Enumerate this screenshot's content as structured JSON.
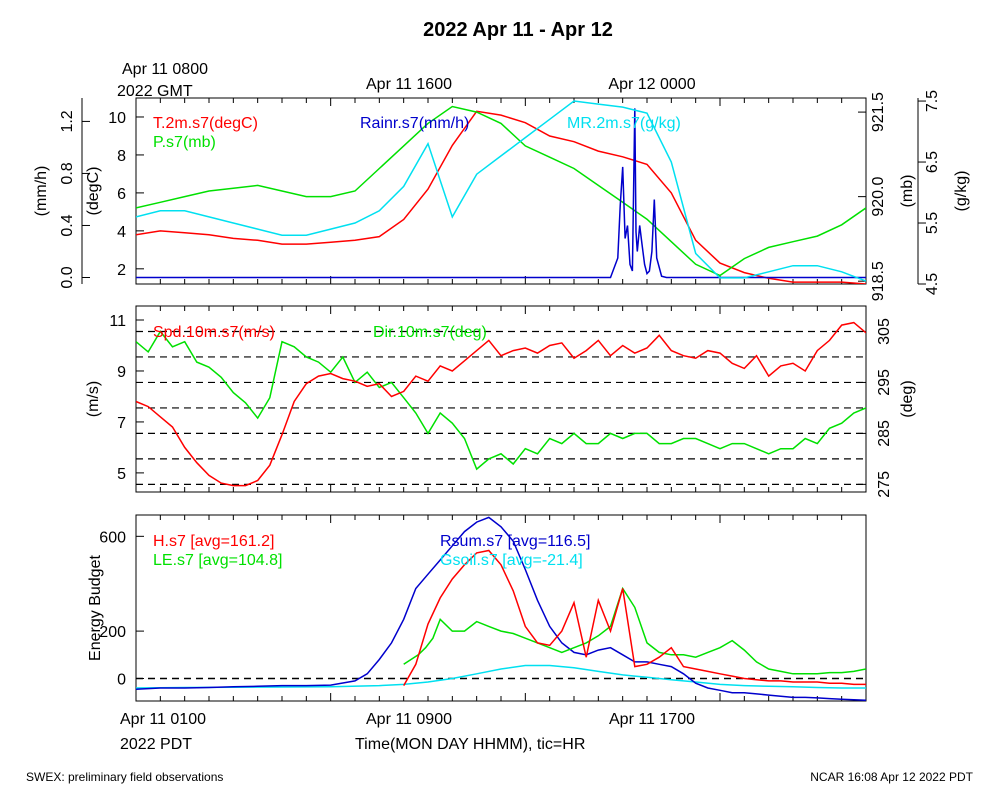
{
  "page": {
    "title": "2022 Apr 11 - Apr 12",
    "footer_left": "SWEX: preliminary field observations",
    "footer_right": "NCAR 16:08 Apr 12 2022 PDT",
    "top_time_labels": [
      "Apr 11 0800",
      "2022 GMT",
      "Apr 11 1600",
      "Apr 12 0000"
    ],
    "bottom_time_labels": [
      "Apr 11 0100",
      "2022 PDT",
      "Apr 11 0900",
      "Apr 11 1700"
    ],
    "xlabel": "Time(MON DAY HHMM), tic=HR"
  },
  "colors": {
    "red": "#ff0000",
    "green": "#00e000",
    "blue": "#0000cc",
    "cyan": "#00e0f0",
    "black": "#000000"
  },
  "chart_data": [
    {
      "type": "line",
      "panel": "top",
      "x_unit": "hours since Apr 11 0100 PDT",
      "xlim": [
        0,
        30
      ],
      "left_axes": [
        {
          "label": "(mm/h)",
          "ticks": [
            "0.0",
            "0.4",
            "0.8",
            "1.2"
          ],
          "tick_values": [
            0,
            0.4,
            0.8,
            1.2
          ],
          "ylim": [
            -0.05,
            1.38
          ]
        },
        {
          "label": "(degC)",
          "ticks": [
            "2",
            "4",
            "6",
            "8",
            "10"
          ],
          "tick_values": [
            2,
            4,
            6,
            8,
            10
          ],
          "ylim": [
            1.2,
            11.0
          ]
        }
      ],
      "right_axes": [
        {
          "label": "(mb)",
          "ticks": [
            "918.5",
            "920.0",
            "921.5"
          ],
          "tick_values": [
            918.5,
            920.0,
            921.5
          ],
          "ylim": [
            918.45,
            921.75
          ]
        },
        {
          "label": "(g/kg)",
          "ticks": [
            "4.5",
            "5.5",
            "6.5",
            "7.5"
          ],
          "tick_values": [
            4.5,
            5.5,
            6.5,
            7.5
          ],
          "ylim": [
            4.5,
            7.55
          ]
        }
      ],
      "series": [
        {
          "name": "T.2m.s7(degC)",
          "color": "red",
          "axis": "degC",
          "x": [
            0,
            1,
            2,
            3,
            4,
            5,
            6,
            7,
            8,
            9,
            10,
            11,
            12,
            13,
            14,
            15,
            16,
            17,
            18,
            19,
            20,
            21,
            22,
            23,
            24,
            25,
            26,
            27,
            28,
            29,
            30
          ],
          "y": [
            3.8,
            4.0,
            3.9,
            3.8,
            3.6,
            3.5,
            3.3,
            3.3,
            3.4,
            3.5,
            3.7,
            4.6,
            6.2,
            8.5,
            10.3,
            10.1,
            9.7,
            9.0,
            8.7,
            8.2,
            7.9,
            7.5,
            6.0,
            3.5,
            2.3,
            1.8,
            1.5,
            1.3,
            1.3,
            1.3,
            1.2
          ]
        },
        {
          "name": "P.s7(mb)",
          "color": "green",
          "axis": "mb",
          "x": [
            0,
            1,
            2,
            3,
            4,
            5,
            6,
            7,
            8,
            9,
            10,
            11,
            12,
            13,
            14,
            15,
            16,
            17,
            18,
            19,
            20,
            21,
            22,
            23,
            24,
            25,
            26,
            27,
            28,
            29,
            30
          ],
          "y": [
            919.8,
            919.9,
            920.0,
            920.1,
            920.15,
            920.2,
            920.1,
            920.0,
            920.0,
            920.1,
            920.5,
            920.9,
            921.3,
            921.6,
            921.5,
            921.3,
            920.9,
            920.7,
            920.5,
            920.2,
            919.9,
            919.6,
            919.2,
            918.8,
            918.6,
            918.9,
            919.1,
            919.2,
            919.3,
            919.5,
            919.8
          ]
        },
        {
          "name": "Rainr.s7(mm/h)",
          "color": "blue",
          "axis": "mm/h",
          "x": [
            0,
            19.5,
            19.8,
            19.9,
            20.0,
            20.1,
            20.2,
            20.3,
            20.4,
            20.5,
            20.55,
            20.6,
            20.7,
            20.8,
            20.9,
            21.0,
            21.1,
            21.2,
            21.3,
            21.4,
            21.6,
            21.8,
            22.0,
            30
          ],
          "y": [
            0,
            0,
            0.15,
            0.55,
            0.85,
            0.3,
            0.4,
            0.1,
            0.05,
            1.3,
            0.35,
            0.2,
            0.4,
            0.25,
            0.1,
            0.03,
            0.05,
            0.2,
            0.6,
            0.15,
            0.01,
            0,
            0,
            0
          ]
        },
        {
          "name": "MR.2m.s7(g/kg)",
          "color": "cyan",
          "axis": "g/kg",
          "x": [
            0,
            1,
            2,
            3,
            4,
            5,
            6,
            7,
            8,
            9,
            10,
            11,
            12,
            13,
            14,
            15,
            16,
            17,
            18,
            19,
            20,
            21,
            22,
            23,
            24,
            25,
            26,
            27,
            28,
            29,
            30
          ],
          "y": [
            5.6,
            5.7,
            5.7,
            5.6,
            5.5,
            5.4,
            5.3,
            5.3,
            5.4,
            5.5,
            5.7,
            6.1,
            6.8,
            5.6,
            6.3,
            6.6,
            6.9,
            7.2,
            7.5,
            7.45,
            7.4,
            7.3,
            6.5,
            5.0,
            4.6,
            4.6,
            4.7,
            4.8,
            4.8,
            4.7,
            4.55
          ]
        }
      ]
    },
    {
      "type": "line",
      "panel": "middle",
      "x_unit": "hours since Apr 11 0100 PDT",
      "xlim": [
        0,
        30
      ],
      "left_axis": {
        "label": "(m/s)",
        "ticks": [
          "5",
          "7",
          "9",
          "11"
        ],
        "tick_values": [
          5,
          7,
          9,
          11
        ],
        "ylim": [
          4.25,
          11.55
        ]
      },
      "right_axis": {
        "label": "(deg)",
        "ticks": [
          "275",
          "285",
          "295",
          "305"
        ],
        "tick_values": [
          275,
          285,
          295,
          305
        ],
        "ylim": [
          273.5,
          310.0
        ]
      },
      "reference_lines_deg": [
        275,
        280,
        285,
        290,
        295,
        300,
        305
      ],
      "series": [
        {
          "name": "Spd.10m.s7(m/s)",
          "color": "red",
          "axis": "m/s",
          "x": [
            0,
            0.5,
            1,
            1.5,
            2,
            2.5,
            3,
            3.5,
            4,
            4.5,
            5,
            5.5,
            6,
            6.5,
            7,
            7.5,
            8,
            8.5,
            9,
            9.5,
            10,
            10.5,
            11,
            11.5,
            12,
            12.5,
            13,
            13.5,
            14,
            14.5,
            15,
            15.5,
            16,
            16.5,
            17,
            17.5,
            18,
            18.5,
            19,
            19.5,
            20,
            20.5,
            21,
            21.5,
            22,
            22.5,
            23,
            23.5,
            24,
            24.5,
            25,
            25.5,
            26,
            26.5,
            27,
            27.5,
            28,
            28.5,
            29,
            29.5,
            30
          ],
          "y": [
            7.8,
            7.6,
            7.2,
            6.8,
            6.0,
            5.4,
            4.9,
            4.6,
            4.5,
            4.5,
            4.7,
            5.3,
            6.5,
            7.8,
            8.5,
            8.8,
            8.9,
            8.7,
            8.6,
            8.4,
            8.5,
            8.0,
            8.2,
            8.8,
            8.6,
            9.2,
            9.0,
            9.4,
            9.8,
            10.2,
            9.6,
            9.8,
            9.9,
            9.7,
            10.0,
            10.1,
            9.5,
            9.8,
            10.2,
            9.6,
            10.0,
            9.7,
            9.9,
            10.4,
            9.8,
            9.6,
            9.5,
            9.8,
            9.7,
            9.3,
            9.1,
            9.6,
            8.8,
            9.2,
            9.3,
            9.0,
            9.8,
            10.2,
            10.8,
            10.9,
            10.5
          ]
        },
        {
          "name": "Dir.10m.s7(deg)",
          "color": "green",
          "axis": "deg",
          "x": [
            0,
            0.5,
            1,
            1.5,
            2,
            2.5,
            3,
            3.5,
            4,
            4.5,
            5,
            5.5,
            6,
            6.5,
            7,
            7.5,
            8,
            8.5,
            9,
            9.5,
            10,
            10.5,
            11,
            11.5,
            12,
            12.5,
            13,
            13.5,
            14,
            14.5,
            15,
            15.5,
            16,
            16.5,
            17,
            17.5,
            18,
            18.5,
            19,
            19.5,
            20,
            20.5,
            21,
            21.5,
            22,
            22.5,
            23,
            23.5,
            24,
            24.5,
            25,
            25.5,
            26,
            26.5,
            27,
            27.5,
            28,
            28.5,
            29,
            29.5,
            30
          ],
          "y": [
            303,
            301,
            305,
            302,
            303,
            299,
            298,
            296,
            293,
            291,
            288,
            292,
            303,
            302,
            300,
            299,
            297,
            300,
            295,
            297,
            294,
            295,
            292,
            289,
            285,
            289,
            287,
            284,
            278,
            280,
            281,
            279,
            282,
            281,
            284,
            283,
            285,
            283,
            283,
            285,
            284,
            285,
            285,
            283,
            283,
            284,
            284,
            283,
            282,
            283,
            283,
            282,
            281,
            282,
            282,
            284,
            283,
            286,
            287,
            289,
            290
          ]
        }
      ]
    },
    {
      "type": "line",
      "panel": "bottom",
      "x_unit": "hours since Apr 11 0100 PDT",
      "xlim": [
        0,
        30
      ],
      "ylabel": "Energy Budget",
      "yticks": [
        "0",
        "200",
        "600"
      ],
      "ytick_values": [
        0,
        200,
        600
      ],
      "ylim": [
        -95,
        690
      ],
      "zero_line": true,
      "series": [
        {
          "name": "H.s7 [avg=161.2]",
          "color": "red",
          "x": [
            11,
            11.5,
            12,
            12.5,
            13,
            13.5,
            14,
            14.5,
            15,
            15.5,
            16,
            16.5,
            17,
            17.5,
            18,
            18.5,
            19,
            19.5,
            20,
            20.5,
            21,
            21.5,
            22,
            22.5,
            23,
            23.5,
            24,
            24.5,
            25,
            25.5,
            26,
            26.5,
            27,
            27.5,
            28,
            28.5,
            29,
            29.5,
            30
          ],
          "y": [
            -30,
            60,
            230,
            340,
            420,
            480,
            530,
            540,
            480,
            370,
            220,
            150,
            140,
            200,
            320,
            90,
            330,
            200,
            380,
            50,
            60,
            90,
            130,
            50,
            40,
            30,
            20,
            10,
            0,
            -5,
            -10,
            -10,
            -15,
            -15,
            -15,
            -20,
            -20,
            -25,
            -25
          ]
        },
        {
          "name": "LE.s7 [avg=104.8]",
          "color": "green",
          "x": [
            11,
            11.3,
            11.6,
            11.9,
            12.2,
            12.5,
            13,
            13.5,
            14,
            14.5,
            15,
            15.5,
            16,
            16.5,
            17,
            17.5,
            18,
            18.5,
            19,
            19.5,
            20,
            20.5,
            21,
            21.5,
            22,
            22.5,
            23,
            23.5,
            24,
            24.5,
            25,
            25.5,
            26,
            26.5,
            27,
            27.5,
            28,
            28.5,
            29,
            29.5,
            30
          ],
          "y": [
            60,
            80,
            100,
            130,
            170,
            250,
            200,
            200,
            240,
            220,
            200,
            190,
            170,
            150,
            130,
            110,
            130,
            150,
            180,
            220,
            380,
            300,
            150,
            110,
            100,
            100,
            90,
            110,
            130,
            160,
            120,
            70,
            40,
            30,
            20,
            20,
            20,
            25,
            25,
            30,
            40
          ]
        },
        {
          "name": "Rsum.s7 [avg=116.5]",
          "color": "blue",
          "x": [
            0,
            1,
            2,
            3,
            4,
            5,
            6,
            7,
            8,
            9,
            9.5,
            10,
            10.5,
            11,
            11.5,
            12,
            12.5,
            13,
            13.5,
            14,
            14.5,
            15,
            15.5,
            16,
            16.5,
            17,
            17.5,
            18,
            18.5,
            19,
            19.5,
            20,
            20.5,
            21,
            21.5,
            22,
            22.5,
            23,
            23.5,
            24,
            24.5,
            25,
            25.5,
            26,
            26.5,
            27,
            27.5,
            28,
            28.5,
            29,
            29.5,
            30
          ],
          "y": [
            -45,
            -40,
            -40,
            -38,
            -35,
            -33,
            -30,
            -30,
            -28,
            -10,
            20,
            80,
            150,
            250,
            380,
            440,
            500,
            560,
            620,
            660,
            680,
            640,
            580,
            460,
            330,
            220,
            150,
            110,
            100,
            120,
            130,
            100,
            70,
            70,
            60,
            50,
            20,
            -20,
            -40,
            -50,
            -60,
            -60,
            -65,
            -70,
            -75,
            -80,
            -80,
            -82,
            -85,
            -88,
            -90,
            -92
          ]
        },
        {
          "name": "Gsoil.s7 [avg=-21.4]",
          "color": "cyan",
          "x": [
            0,
            2,
            4,
            6,
            8,
            10,
            11,
            12,
            13,
            14,
            15,
            16,
            17,
            18,
            19,
            20,
            21,
            22,
            23,
            24,
            25,
            26,
            27,
            28,
            29,
            30
          ],
          "y": [
            -40,
            -38,
            -37,
            -36,
            -35,
            -30,
            -25,
            -15,
            0,
            20,
            40,
            55,
            55,
            45,
            30,
            15,
            5,
            -5,
            -15,
            -25,
            -30,
            -33,
            -35,
            -38,
            -40,
            -40
          ]
        }
      ]
    }
  ]
}
